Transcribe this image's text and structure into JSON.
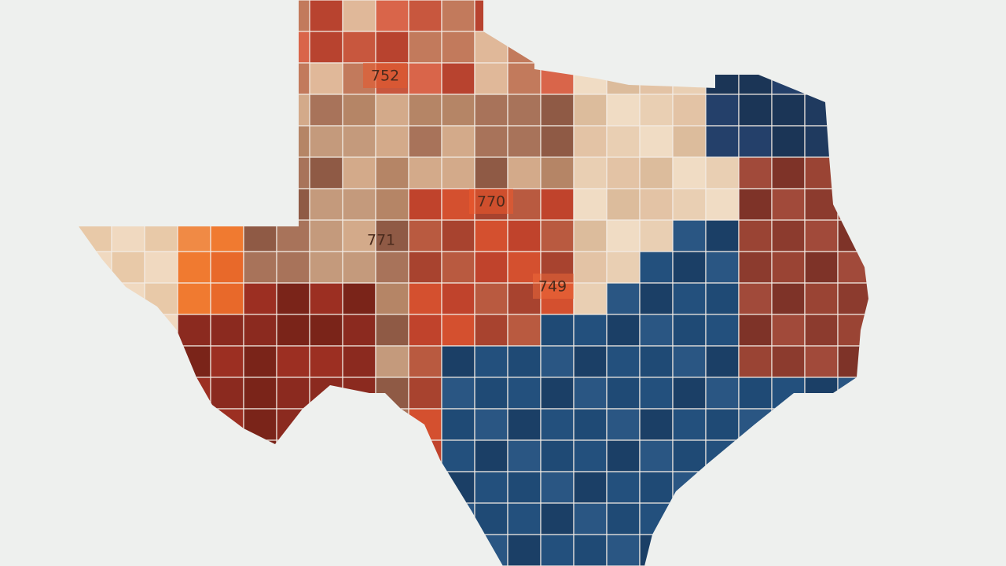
{
  "map": {
    "labels": [
      {
        "text": "752"
      },
      {
        "text": "770"
      },
      {
        "text": "771"
      },
      {
        "text": "749"
      }
    ]
  }
}
